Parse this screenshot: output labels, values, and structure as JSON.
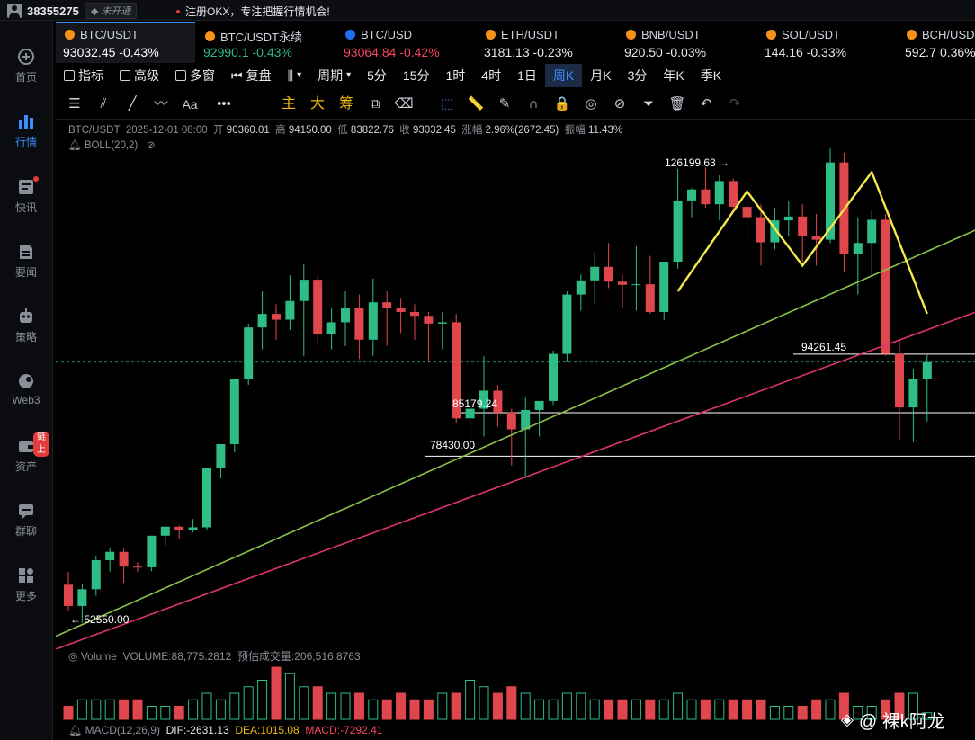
{
  "topbar": {
    "uid": "38355275",
    "vip_status": "未开通",
    "notice": "注册OKX，专注把握行情机会!"
  },
  "sidebar": [
    {
      "label": "首页",
      "icon": "okx-logo-icon"
    },
    {
      "label": "行情",
      "icon": "bar-chart-icon",
      "active": true
    },
    {
      "label": "快讯",
      "icon": "news-flash-icon",
      "dot": true
    },
    {
      "label": "要闻",
      "icon": "document-icon"
    },
    {
      "label": "策略",
      "icon": "robot-icon"
    },
    {
      "label": "Web3",
      "icon": "web3-icon"
    },
    {
      "label": "资产",
      "icon": "wallet-icon",
      "tag": "链上"
    },
    {
      "label": "群聊",
      "icon": "chat-icon"
    },
    {
      "label": "更多",
      "icon": "grid-icon"
    }
  ],
  "tickers": [
    {
      "name": "BTC/USDT",
      "price": "93032.45",
      "change": "-0.43%",
      "price_color": "#ffffff",
      "change_color": "#ffffff",
      "coin": "#f7931a"
    },
    {
      "name": "BTC/USDT永续",
      "price": "92990.1",
      "change": "-0.43%",
      "price_color": "#2ebd85",
      "change_color": "#2ebd85",
      "coin": "#f7931a"
    },
    {
      "name": "BTC/USD",
      "price": "93064.84",
      "change": "-0.42%",
      "price_color": "#f6465d",
      "change_color": "#f6465d",
      "coin": "#1e6ff1"
    },
    {
      "name": "ETH/USDT",
      "price": "3181.13",
      "change": "-0.23%",
      "price_color": "#e6e8ec",
      "change_color": "#e6e8ec",
      "coin": "#f7931a"
    },
    {
      "name": "BNB/USDT",
      "price": "920.50",
      "change": "-0.03%",
      "price_color": "#e6e8ec",
      "change_color": "#e6e8ec",
      "coin": "#f7931a"
    },
    {
      "name": "SOL/USDT",
      "price": "144.16",
      "change": "-0.33%",
      "price_color": "#e6e8ec",
      "change_color": "#e6e8ec",
      "coin": "#f7931a"
    },
    {
      "name": "BCH/USDT",
      "price": "592.7",
      "change": "0.36%",
      "price_color": "#e6e8ec",
      "change_color": "#e6e8ec",
      "coin": "#f7931a"
    }
  ],
  "toolbar": {
    "indicators": "指标",
    "advanced": "高级",
    "multi_window": "多窗",
    "replay": "复盘",
    "more": "...",
    "period": "周期",
    "intervals": [
      "5分",
      "15分",
      "1时",
      "4时",
      "1日",
      "周K",
      "月K",
      "3分",
      "年K",
      "季K"
    ],
    "active_interval": "周K"
  },
  "drawing_tools": {
    "main": "主",
    "big": "大",
    "chips": "筹"
  },
  "legend": {
    "symbol": "BTC/USDT",
    "time": "2025-12-01 08:00",
    "open_label": "开",
    "open": "90360.01",
    "high_label": "高",
    "high": "94150.00",
    "low_label": "低",
    "low": "83822.76",
    "close_label": "收",
    "close": "93032.45",
    "change_label": "涨幅",
    "change": "2.96%(2672.45)",
    "amplitude_label": "振幅",
    "amplitude": "11.43%",
    "boll": "BOLL(20,2)"
  },
  "chart_data": {
    "type": "candlestick",
    "interval": "weekly",
    "price_range": [
      48500,
      130500
    ],
    "up_color": "#2ebd85",
    "down_color": "#e0474c",
    "candles": [
      [
        58500,
        60500,
        54500,
        55200
      ],
      [
        55200,
        58700,
        52550,
        57800
      ],
      [
        57800,
        63000,
        56800,
        62300
      ],
      [
        62300,
        64300,
        60500,
        63600
      ],
      [
        63600,
        64200,
        58800,
        61300
      ],
      [
        61300,
        62000,
        60500,
        61200
      ],
      [
        61200,
        66000,
        60600,
        66100
      ],
      [
        66100,
        67000,
        64500,
        67500
      ],
      [
        67500,
        67700,
        65500,
        67000
      ],
      [
        67000,
        68700,
        66600,
        67400
      ],
      [
        67400,
        76300,
        67000,
        76600
      ],
      [
        76600,
        80300,
        75000,
        80300
      ],
      [
        80300,
        90000,
        79000,
        90400
      ],
      [
        90400,
        99000,
        89500,
        98400
      ],
      [
        98400,
        104000,
        95000,
        100500
      ],
      [
        100500,
        102000,
        96500,
        99600
      ],
      [
        99600,
        106500,
        98000,
        102500
      ],
      [
        102500,
        108200,
        94000,
        105800
      ],
      [
        105800,
        106500,
        96000,
        97300
      ],
      [
        97300,
        101500,
        95000,
        99200
      ],
      [
        99200,
        104000,
        95500,
        101400
      ],
      [
        101400,
        103500,
        93500,
        96500
      ],
      [
        96500,
        106000,
        94000,
        102300
      ],
      [
        102300,
        104000,
        95500,
        101400
      ],
      [
        101400,
        103000,
        97500,
        100800
      ],
      [
        100800,
        102000,
        96500,
        100200
      ],
      [
        100200,
        100800,
        93000,
        99000
      ],
      [
        99000,
        100800,
        95000,
        99200
      ],
      [
        99200,
        100500,
        83500,
        84300
      ],
      [
        84300,
        87500,
        78400,
        85800
      ],
      [
        85800,
        94000,
        81500,
        88600
      ],
      [
        88600,
        89500,
        83000,
        85200
      ],
      [
        85200,
        85800,
        77000,
        82600
      ],
      [
        82600,
        87500,
        75000,
        85600
      ],
      [
        85600,
        86800,
        81500,
        87000
      ],
      [
        87000,
        94800,
        86400,
        94300
      ],
      [
        94300,
        104000,
        93000,
        103500
      ],
      [
        103500,
        106600,
        101000,
        105700
      ],
      [
        105700,
        110000,
        102000,
        107800
      ],
      [
        107800,
        111500,
        104500,
        105500
      ],
      [
        105500,
        106600,
        101500,
        105000
      ],
      [
        105000,
        111000,
        101000,
        105100
      ],
      [
        105100,
        109500,
        100500,
        100800
      ],
      [
        100800,
        108500,
        99500,
        108600
      ],
      [
        108600,
        123000,
        107500,
        118100
      ],
      [
        118100,
        120000,
        115500,
        119800
      ],
      [
        119800,
        123200,
        117000,
        117500
      ],
      [
        117500,
        122000,
        115000,
        121100
      ],
      [
        121100,
        121500,
        116500,
        117100
      ],
      [
        117100,
        119500,
        111500,
        115500
      ],
      [
        115500,
        117500,
        108000,
        111600
      ],
      [
        111600,
        117000,
        110500,
        115000
      ],
      [
        115000,
        118000,
        112500,
        115600
      ],
      [
        115600,
        117500,
        108500,
        112500
      ],
      [
        112500,
        116000,
        108000,
        112000
      ],
      [
        112000,
        126199.63,
        111500,
        124000
      ],
      [
        124000,
        125500,
        107000,
        109800
      ],
      [
        109800,
        115500,
        103500,
        111500
      ],
      [
        111500,
        116500,
        106500,
        115100
      ],
      [
        115100,
        116000,
        94000,
        94300
      ],
      [
        94300,
        96500,
        81000,
        86000
      ],
      [
        86000,
        92000,
        80600,
        90400
      ],
      [
        90360.01,
        94150.0,
        83822.76,
        93032.45
      ]
    ],
    "annotations": {
      "high": "126199.63",
      "low": "52550.00",
      "levels": [
        {
          "label": "94261.45",
          "price": 94261.45
        },
        {
          "label": "85179.24",
          "price": 85179.24
        },
        {
          "label": "78430.00",
          "price": 78430
        }
      ],
      "current_price": 93032.45
    },
    "trendlines": [
      {
        "name": "green",
        "color": "#8bc34a",
        "from": {
          "candle": 0,
          "price": 50500
        },
        "to": {
          "candle": 63,
          "price": 111000
        }
      },
      {
        "name": "pink",
        "color": "#e0337a",
        "from": {
          "candle": 0,
          "price": 48500
        },
        "to": {
          "candle": 63,
          "price": 98700
        }
      }
    ],
    "pattern": {
      "color": "#f5e94a",
      "points": [
        [
          44,
          104000
        ],
        [
          49,
          119500
        ],
        [
          53,
          108000
        ],
        [
          58,
          122500
        ],
        [
          62,
          100500
        ]
      ]
    },
    "volume": [
      2,
      3,
      3,
      3,
      3,
      3,
      2,
      2,
      2,
      3,
      4,
      3,
      4,
      5,
      6,
      8,
      7,
      5,
      5,
      4,
      4,
      4,
      3,
      3,
      4,
      3,
      3,
      4,
      4,
      6,
      5,
      4,
      5,
      4,
      3,
      3,
      4,
      4,
      3,
      3,
      3,
      3,
      3,
      3,
      4,
      3,
      3,
      3,
      3,
      3,
      3,
      2,
      2,
      2,
      3,
      3,
      4,
      2,
      2,
      3,
      4,
      4,
      1
    ],
    "volume_units": "relative"
  },
  "volume_legend": {
    "title": "Volume",
    "volume": "VOLUME:88,775.2812",
    "estimate": "预估成交量:206,516.8763"
  },
  "macd_legend": {
    "title": "MACD(12,26,9)",
    "dif": "DIF:-2631.13",
    "dea": "DEA:1015.08",
    "macd": "MACD:-7292.41"
  },
  "watermark": "@ 裸k阿龙"
}
